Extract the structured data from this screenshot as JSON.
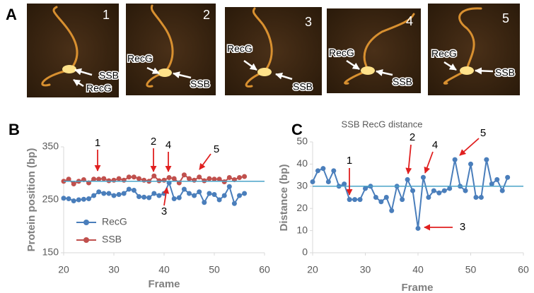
{
  "panel_a": {
    "label": "A",
    "frames": [
      {
        "number": "1",
        "labels": [
          "SSB",
          "RecG"
        ]
      },
      {
        "number": "2",
        "labels": [
          "RecG",
          "SSB"
        ]
      },
      {
        "number": "3",
        "labels": [
          "RecG",
          "SSB"
        ]
      },
      {
        "number": "4",
        "labels": [
          "RecG",
          "SSB"
        ]
      },
      {
        "number": "5",
        "labels": [
          "RecG",
          "SSB"
        ]
      }
    ]
  },
  "chart_data": [
    {
      "type": "line",
      "panel_label": "B",
      "xlabel": "Frame",
      "ylabel": "Protein position (bp)",
      "x": [
        20,
        21,
        22,
        23,
        24,
        25,
        26,
        27,
        28,
        29,
        30,
        31,
        32,
        33,
        34,
        35,
        36,
        37,
        38,
        39,
        40,
        41,
        42,
        43,
        44,
        45,
        46,
        47,
        48,
        49,
        50,
        51,
        52,
        53,
        54,
        55,
        56
      ],
      "series": [
        {
          "name": "RecG",
          "color": "#4a7ebb",
          "values": [
            253,
            252,
            248,
            250,
            251,
            252,
            258,
            265,
            262,
            262,
            258,
            260,
            262,
            270,
            268,
            256,
            255,
            254,
            262,
            258,
            262,
            282,
            252,
            254,
            270,
            262,
            258,
            265,
            245,
            262,
            260,
            250,
            258,
            275,
            243,
            258,
            262
          ]
        },
        {
          "name": "SSB",
          "color": "#c0504d",
          "values": [
            285,
            289,
            280,
            285,
            288,
            282,
            289,
            289,
            290,
            286,
            287,
            290,
            287,
            293,
            293,
            290,
            287,
            285,
            295,
            286,
            287,
            292,
            290,
            282,
            297,
            290,
            287,
            293,
            286,
            290,
            289,
            289,
            284,
            292,
            288,
            292,
            294
          ]
        }
      ],
      "xlim": [
        20,
        60
      ],
      "xticks": [
        20,
        30,
        40,
        50,
        60
      ],
      "ylim": [
        150,
        350
      ],
      "yticks": [
        150,
        250,
        350
      ],
      "reference_line": 285,
      "reference_color": "#4aa3c8",
      "annotations": [
        "1",
        "2",
        "3",
        "4",
        "5"
      ],
      "annotation_color": "#e02020",
      "legend": "lower-left",
      "grid": false
    },
    {
      "type": "line",
      "panel_label": "C",
      "title": "SSB RecG distance",
      "xlabel": "Frame",
      "ylabel": "Distance (bp)",
      "x": [
        20,
        21,
        22,
        23,
        24,
        25,
        26,
        27,
        28,
        29,
        30,
        31,
        32,
        33,
        34,
        35,
        36,
        37,
        38,
        39,
        40,
        41,
        42,
        43,
        44,
        45,
        46,
        47,
        48,
        49,
        50,
        51,
        52,
        53,
        54,
        55,
        56,
        57
      ],
      "values": [
        32,
        37,
        38,
        32,
        37,
        30,
        31,
        24,
        24,
        24,
        29,
        30,
        25,
        23,
        25,
        19,
        30,
        24,
        33,
        28,
        11,
        34,
        25,
        28,
        27,
        28,
        29,
        42,
        30,
        28,
        40,
        25,
        25,
        42,
        31,
        33,
        28,
        34
      ],
      "color": "#4a7ebb",
      "xlim": [
        20,
        60
      ],
      "xticks": [
        20,
        30,
        40,
        50,
        60
      ],
      "ylim": [
        0,
        50
      ],
      "yticks": [
        0,
        10,
        20,
        30,
        40,
        50
      ],
      "reference_line": 30,
      "reference_color": "#4aa3c8",
      "annotations": [
        "1",
        "2",
        "3",
        "4",
        "5"
      ],
      "annotation_color": "#e02020",
      "grid": false
    }
  ]
}
